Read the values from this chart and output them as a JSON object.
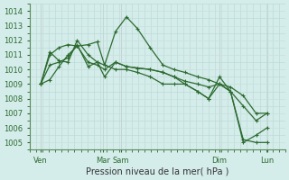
{
  "xlabel": "Pression niveau de la mer( hPa )",
  "background_color": "#d4ecea",
  "grid_color_minor": "#b8d8d4",
  "grid_color_major": "#c8e0dc",
  "line_color": "#2d6b30",
  "xlim": [
    0,
    7
  ],
  "ylim": [
    1004.5,
    1014.5
  ],
  "yticks": [
    1005,
    1006,
    1007,
    1008,
    1009,
    1010,
    1011,
    1012,
    1013,
    1014
  ],
  "xtick_positions": [
    0.3,
    2.0,
    2.5,
    5.2,
    6.5
  ],
  "xtick_labels": [
    "Ven",
    "Mar",
    "Sam",
    "Dim",
    "Lun"
  ],
  "vline_positions": [
    0.3,
    2.0,
    2.5,
    5.2,
    6.5
  ],
  "series": [
    {
      "x": [
        0.3,
        0.55,
        0.8,
        1.05,
        1.3,
        1.6,
        1.85,
        2.05,
        2.35,
        2.65,
        2.95,
        3.3,
        3.65,
        3.95,
        4.25,
        4.6,
        4.9,
        5.2,
        5.5,
        5.85,
        6.2,
        6.5
      ],
      "y": [
        1009.0,
        1009.3,
        1010.2,
        1011.0,
        1011.6,
        1011.7,
        1011.9,
        1010.3,
        1012.6,
        1013.6,
        1012.8,
        1011.5,
        1010.3,
        1010.0,
        1009.8,
        1009.5,
        1009.3,
        1009.0,
        1008.5,
        1007.5,
        1006.5,
        1007.0
      ]
    },
    {
      "x": [
        0.3,
        0.55,
        0.8,
        1.05,
        1.3,
        1.6,
        1.85,
        2.05,
        2.35,
        2.65,
        2.95,
        3.3,
        3.65,
        3.95,
        4.25,
        4.6,
        4.9,
        5.2,
        5.5,
        5.85,
        6.2,
        6.5
      ],
      "y": [
        1009.0,
        1011.0,
        1011.5,
        1011.7,
        1011.6,
        1010.5,
        1010.3,
        1010.0,
        1010.5,
        1010.2,
        1010.1,
        1010.0,
        1009.8,
        1009.5,
        1009.2,
        1009.0,
        1008.8,
        1009.0,
        1008.8,
        1008.2,
        1007.0,
        1007.0
      ]
    },
    {
      "x": [
        0.3,
        0.55,
        0.8,
        1.05,
        1.3,
        1.6,
        1.85,
        2.05,
        2.35,
        2.65,
        2.95,
        3.3,
        3.65,
        3.95,
        4.25,
        4.6,
        4.9,
        5.2,
        5.5,
        5.85,
        6.2,
        6.5
      ],
      "y": [
        1009.0,
        1011.2,
        1010.6,
        1010.5,
        1012.0,
        1011.0,
        1010.5,
        1009.5,
        1010.5,
        1010.2,
        1010.1,
        1010.0,
        1009.8,
        1009.5,
        1009.0,
        1008.5,
        1008.0,
        1009.0,
        1008.5,
        1005.2,
        1005.0,
        1005.0
      ]
    },
    {
      "x": [
        0.3,
        0.55,
        0.8,
        1.05,
        1.3,
        1.6,
        1.85,
        2.05,
        2.35,
        2.65,
        2.95,
        3.3,
        3.65,
        3.95,
        4.25,
        4.6,
        4.9,
        5.2,
        5.5,
        5.85,
        6.2,
        6.5
      ],
      "y": [
        1009.0,
        1010.3,
        1010.5,
        1010.8,
        1011.7,
        1010.2,
        1010.5,
        1010.3,
        1010.0,
        1010.0,
        1009.8,
        1009.5,
        1009.0,
        1009.0,
        1009.0,
        1008.5,
        1008.0,
        1009.5,
        1008.5,
        1005.0,
        1005.5,
        1006.0
      ]
    }
  ]
}
